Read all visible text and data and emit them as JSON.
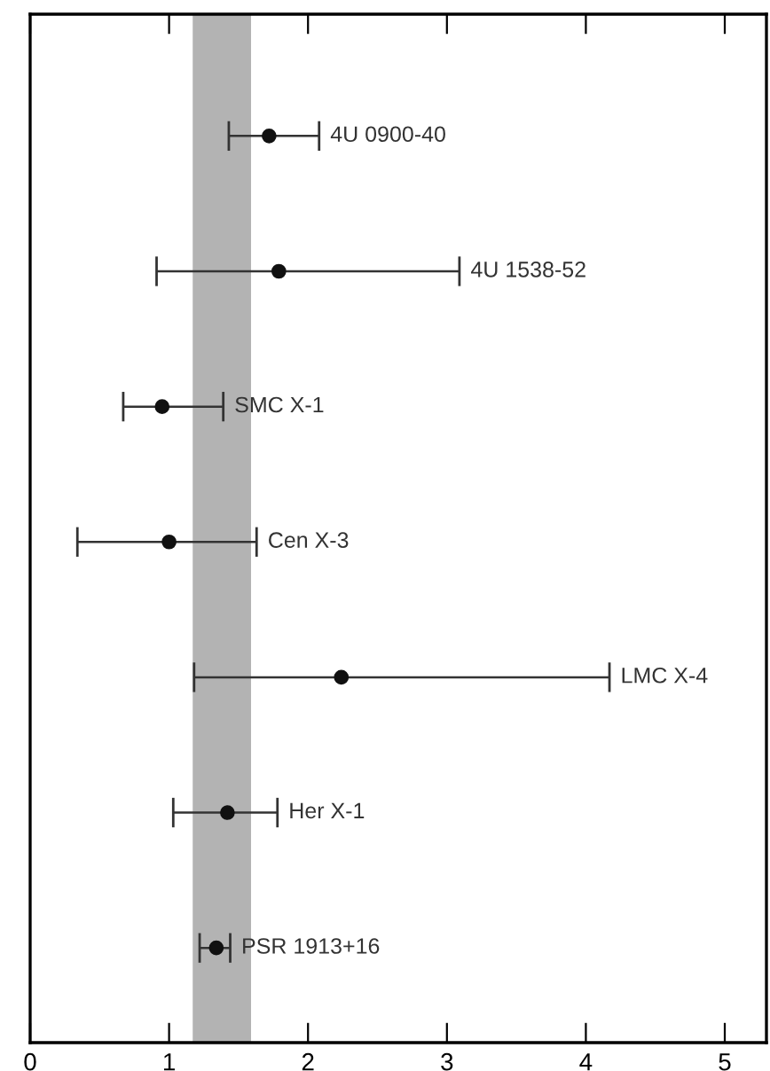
{
  "chart_data": {
    "type": "scatter",
    "orientation": "horizontal",
    "categories": [
      "4U 0900-40",
      "4U 1538-52",
      "SMC X-1",
      "Cen X-3",
      "LMC X-4",
      "Her X-1",
      "PSR 1913+16"
    ],
    "values": [
      1.72,
      1.79,
      0.95,
      1.0,
      2.24,
      1.42,
      1.34
    ],
    "errors": [
      [
        1.43,
        2.08
      ],
      [
        0.91,
        3.09
      ],
      [
        0.67,
        1.39
      ],
      [
        0.34,
        1.63
      ],
      [
        1.18,
        4.17
      ],
      [
        1.03,
        1.78
      ],
      [
        1.22,
        1.44
      ]
    ],
    "color": "#111111",
    "marker": "circle",
    "xlim": [
      0,
      5.3
    ],
    "xticks": [
      0,
      1,
      2,
      3,
      4,
      5
    ],
    "bands": [
      {
        "axis": "x",
        "from": 1.17,
        "to": 1.59,
        "color": "#b3b3b3"
      }
    ],
    "tick_labels": "x",
    "grid": false,
    "legend": false
  }
}
